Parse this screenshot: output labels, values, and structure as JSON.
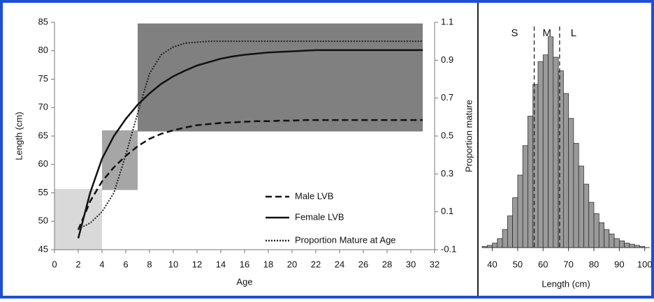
{
  "chart_data": [
    {
      "type": "line",
      "x_label": "Age",
      "y_label": "Length (cm)",
      "y2_label": "Proportion mature",
      "xlim": [
        0,
        32
      ],
      "xticks": [
        0,
        2,
        4,
        6,
        8,
        10,
        12,
        14,
        16,
        18,
        20,
        22,
        24,
        26,
        28,
        30,
        32
      ],
      "ylim": [
        45,
        85
      ],
      "yticks": [
        45,
        50,
        55,
        60,
        65,
        70,
        75,
        80,
        85
      ],
      "y2lim": [
        -0.1,
        1.1
      ],
      "y2ticks": [
        -0.1,
        0.1,
        0.3,
        0.5,
        0.7,
        0.9,
        1.1
      ],
      "shaded_regions": [
        {
          "xlim": [
            0,
            4
          ],
          "ylim": [
            45,
            55.7
          ],
          "color": "#d9d9d9"
        },
        {
          "xlim": [
            4,
            7
          ],
          "ylim": [
            55.5,
            66
          ],
          "color": "#a6a6a6"
        },
        {
          "xlim": [
            7,
            31
          ],
          "ylim": [
            65.8,
            84.8
          ],
          "color": "#808080"
        }
      ],
      "x": [
        2,
        3,
        4,
        5,
        6,
        7,
        8,
        9,
        10,
        11,
        12,
        13,
        14,
        15,
        16,
        17,
        18,
        19,
        20,
        21,
        22,
        23,
        24,
        25,
        26,
        27,
        28,
        29,
        30,
        31
      ],
      "series": [
        {
          "name": "Male LVB",
          "color": "#111111",
          "dash": "dashed",
          "values": [
            48.5,
            53.5,
            57,
            59.5,
            61.5,
            63.2,
            64.5,
            65.4,
            66,
            66.5,
            66.9,
            67.1,
            67.3,
            67.4,
            67.5,
            67.6,
            67.6,
            67.7,
            67.7,
            67.8,
            67.8,
            67.8,
            67.8,
            67.8,
            67.8,
            67.8,
            67.8,
            67.8,
            67.8,
            67.8
          ]
        },
        {
          "name": "Female LVB",
          "color": "#111111",
          "dash": "solid",
          "values": [
            47,
            55,
            61,
            65,
            68,
            70.5,
            72.5,
            74.2,
            75.5,
            76.5,
            77.4,
            78,
            78.6,
            79,
            79.3,
            79.5,
            79.7,
            79.8,
            79.9,
            80,
            80.1,
            80.1,
            80.1,
            80.1,
            80.1,
            80.1,
            80.1,
            80.1,
            80.1,
            80.1
          ]
        },
        {
          "name": "Proportion Mature at Age",
          "color": "#222222",
          "dash": "dotted",
          "axis": "y2",
          "values": [
            0.01,
            0.04,
            0.1,
            0.2,
            0.4,
            0.62,
            0.83,
            0.93,
            0.97,
            0.99,
            0.995,
            1,
            1,
            1,
            1,
            1,
            1,
            1,
            1,
            1,
            1,
            1,
            1,
            1,
            1,
            1,
            1,
            1,
            1,
            1
          ]
        }
      ]
    },
    {
      "type": "histogram",
      "x_label": "Length (cm)",
      "xlim": [
        36,
        102
      ],
      "xticks": [
        40,
        50,
        60,
        70,
        80,
        90,
        100
      ],
      "ylim": [
        0,
        100
      ],
      "color": "#9a9a9a",
      "bins": [
        36,
        38,
        40,
        42,
        44,
        46,
        48,
        50,
        52,
        54,
        56,
        58,
        60,
        62,
        64,
        66,
        68,
        70,
        72,
        74,
        76,
        78,
        80,
        82,
        84,
        86,
        88,
        90,
        92,
        94,
        96,
        98,
        100
      ],
      "values": [
        0.5,
        1,
        2,
        4,
        8,
        14,
        22,
        32,
        45,
        58,
        72,
        82,
        85,
        93,
        84,
        78,
        68,
        57,
        46,
        36,
        28,
        20,
        15,
        11,
        8,
        6,
        4,
        3,
        2,
        1.5,
        1,
        0.5
      ],
      "cutoffs": [
        56.5,
        66.5
      ],
      "annotations": [
        "S",
        "M",
        "L"
      ]
    }
  ]
}
